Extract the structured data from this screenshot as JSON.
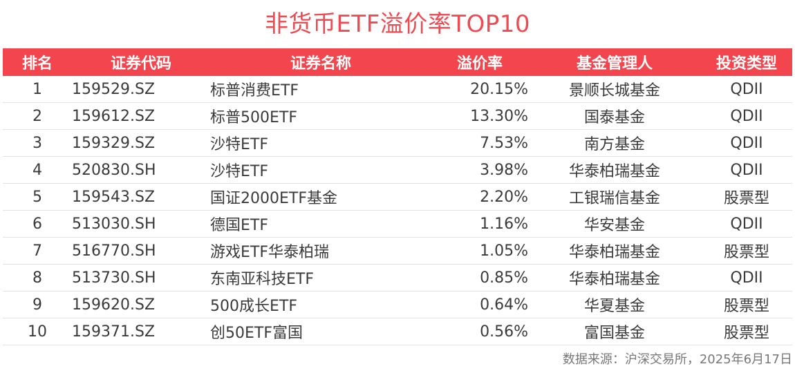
{
  "title": "非货币ETF溢价率TOP10",
  "table": {
    "headers": {
      "rank": "排名",
      "code": "证券代码",
      "name": "证券名称",
      "premium": "溢价率",
      "manager": "基金管理人",
      "type": "投资类型"
    },
    "rows": [
      {
        "rank": "1",
        "code": "159529.SZ",
        "name": "标普消费ETF",
        "premium": "20.15%",
        "manager": "景顺长城基金",
        "type": "QDII"
      },
      {
        "rank": "2",
        "code": "159612.SZ",
        "name": "标普500ETF",
        "premium": "13.30%",
        "manager": "国泰基金",
        "type": "QDII"
      },
      {
        "rank": "3",
        "code": "159329.SZ",
        "name": "沙特ETF",
        "premium": "7.53%",
        "manager": "南方基金",
        "type": "QDII"
      },
      {
        "rank": "4",
        "code": "520830.SH",
        "name": "沙特ETF",
        "premium": "3.98%",
        "manager": "华泰柏瑞基金",
        "type": "QDII"
      },
      {
        "rank": "5",
        "code": "159543.SZ",
        "name": "国证2000ETF基金",
        "premium": "2.20%",
        "manager": "工银瑞信基金",
        "type": "股票型"
      },
      {
        "rank": "6",
        "code": "513030.SH",
        "name": "德国ETF",
        "premium": "1.16%",
        "manager": "华安基金",
        "type": "QDII"
      },
      {
        "rank": "7",
        "code": "516770.SH",
        "name": "游戏ETF华泰柏瑞",
        "premium": "1.05%",
        "manager": "华泰柏瑞基金",
        "type": "股票型"
      },
      {
        "rank": "8",
        "code": "513730.SH",
        "name": "东南亚科技ETF",
        "premium": "0.85%",
        "manager": "华泰柏瑞基金",
        "type": "QDII"
      },
      {
        "rank": "9",
        "code": "159620.SZ",
        "name": "500成长ETF",
        "premium": "0.64%",
        "manager": "华夏基金",
        "type": "股票型"
      },
      {
        "rank": "10",
        "code": "159371.SZ",
        "name": "创50ETF富国",
        "premium": "0.56%",
        "manager": "富国基金",
        "type": "股票型"
      }
    ]
  },
  "source": "数据来源：沪深交易所，2025年6月17日",
  "colors": {
    "title": "#ef4a51",
    "header_background": "#f2454d",
    "header_text": "#ffffff",
    "body_text": "#3a3a3a",
    "source_text": "#777777"
  }
}
